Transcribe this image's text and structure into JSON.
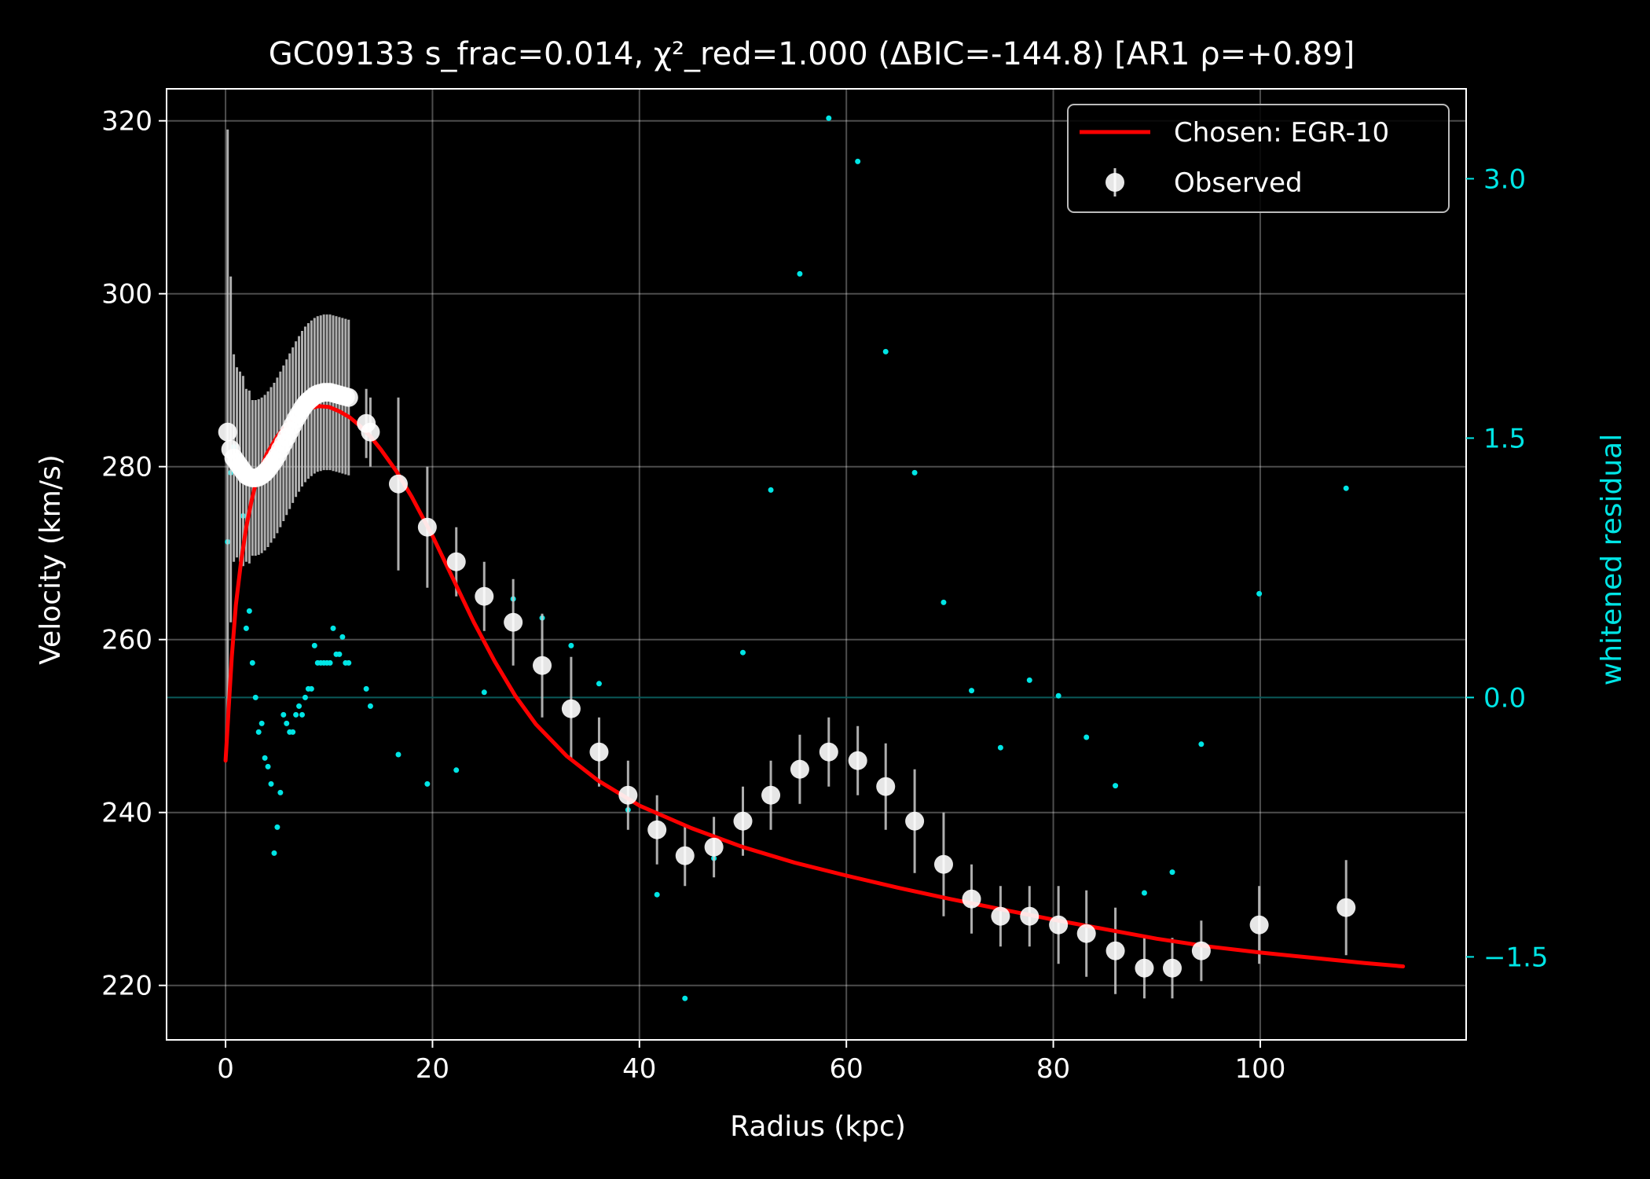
{
  "chart_data": {
    "type": "scatter",
    "title": "GC09133  s_frac=0.014, χ²_red=1.000  (ΔBIC=-144.8) [AR1 ρ=+0.89]",
    "xlabel": "Radius (kpc)",
    "ylabel": "Velocity (km/s)",
    "y2label": "whitened residual",
    "xlim": [
      -5.7,
      119.9
    ],
    "ylim": [
      213.7,
      323.7
    ],
    "y2lim": [
      -1.98,
      3.52
    ],
    "xticks": [
      0,
      20,
      40,
      60,
      80,
      100
    ],
    "yticks": [
      220,
      240,
      260,
      280,
      300,
      320
    ],
    "y2ticks": [
      -1.5,
      0.0,
      1.5,
      3.0
    ],
    "y2ticklabels": [
      "−1.5",
      "0.0",
      "1.5",
      "3.0"
    ],
    "grid": true,
    "legend_position": "top-right",
    "colors": {
      "background": "#000000",
      "axes": "#ffffff",
      "fit": "#ff0000",
      "observed": "#ffffff",
      "errorbar": "#cccccc",
      "residual": "#00e5e5",
      "zero_line": "#0a5a5a"
    },
    "legend": [
      "Chosen: EGR-10",
      "Observed"
    ],
    "series": [
      {
        "name": "Observed",
        "kind": "errorbar",
        "x": [
          0.2,
          0.5,
          0.8,
          1.1,
          1.4,
          1.7,
          2.0,
          2.3,
          2.6,
          2.9,
          3.2,
          3.5,
          3.8,
          4.1,
          4.4,
          4.7,
          5.0,
          5.3,
          5.6,
          5.9,
          6.2,
          6.5,
          6.8,
          7.1,
          7.4,
          7.7,
          8.0,
          8.3,
          8.6,
          8.9,
          9.2,
          9.5,
          9.8,
          10.1,
          10.4,
          10.7,
          11.0,
          11.3,
          11.6,
          11.9,
          13.6,
          14.0,
          16.7,
          19.5,
          22.3,
          25.0,
          27.8,
          30.6,
          33.4,
          36.1,
          38.9,
          41.7,
          44.4,
          47.2,
          50.0,
          52.7,
          55.5,
          58.3,
          61.1,
          63.8,
          66.6,
          69.4,
          72.1,
          74.9,
          77.7,
          80.5,
          83.2,
          86.0,
          88.8,
          91.5,
          94.3,
          99.9,
          108.3
        ],
        "y": [
          284.0,
          282.0,
          281.0,
          280.5,
          280.0,
          279.5,
          279.0,
          278.8,
          278.7,
          278.7,
          278.8,
          279.0,
          279.3,
          279.7,
          280.2,
          280.7,
          281.3,
          282.0,
          282.7,
          283.4,
          284.1,
          284.8,
          285.5,
          286.1,
          286.7,
          287.2,
          287.6,
          287.9,
          288.2,
          288.4,
          288.5,
          288.6,
          288.6,
          288.6,
          288.5,
          288.4,
          288.3,
          288.2,
          288.1,
          288.0,
          285.0,
          284.0,
          278.0,
          273.0,
          269.0,
          265.0,
          262.0,
          257.0,
          252.0,
          247.0,
          242.0,
          238.0,
          235.0,
          236.0,
          239.0,
          242.0,
          245.0,
          247.0,
          246.0,
          243.0,
          239.0,
          234.0,
          230.0,
          228.0,
          228.0,
          227.0,
          226.0,
          224.0,
          222.0,
          222.0,
          224.0,
          227.0,
          229.0
        ],
        "yerr": [
          35.0,
          20.0,
          12.0,
          11.0,
          11.0,
          11.0,
          10.0,
          10.0,
          9.0,
          9.0,
          9.0,
          9.0,
          9.0,
          9.0,
          9.0,
          9.0,
          9.0,
          9.0,
          9.0,
          9.0,
          9.0,
          9.0,
          9.0,
          9.0,
          9.0,
          9.0,
          9.0,
          9.0,
          9.0,
          9.0,
          9.0,
          9.0,
          9.0,
          9.0,
          9.0,
          9.0,
          9.0,
          9.0,
          9.0,
          9.0,
          4.0,
          4.0,
          10.0,
          7.0,
          4.0,
          4.0,
          5.0,
          6.0,
          6.0,
          4.0,
          4.0,
          4.0,
          3.5,
          3.5,
          4.0,
          4.0,
          4.0,
          4.0,
          4.0,
          5.0,
          6.0,
          6.0,
          4.0,
          3.5,
          3.5,
          4.5,
          5.0,
          5.0,
          3.5,
          3.5,
          3.5,
          4.5,
          5.5
        ]
      },
      {
        "name": "Chosen: EGR-10",
        "kind": "line",
        "x": [
          0.0,
          0.3,
          0.6,
          1.0,
          1.5,
          2.0,
          2.5,
          3.0,
          4.0,
          5.0,
          6.0,
          7.0,
          8.0,
          9.0,
          10.0,
          11.0,
          12.0,
          13.0,
          14.0,
          15.0,
          16.5,
          18.0,
          20.0,
          22.0,
          24.0,
          26.0,
          28.0,
          30.0,
          33.0,
          36.0,
          40.0,
          45.0,
          50.0,
          55.0,
          60.0,
          65.0,
          70.0,
          75.0,
          80.0,
          85.0,
          90.0,
          95.0,
          100.0,
          105.0,
          110.0,
          113.8
        ],
        "y": [
          246.0,
          252.0,
          258.0,
          264.0,
          269.0,
          273.0,
          276.0,
          278.5,
          281.5,
          283.5,
          285.0,
          286.0,
          286.7,
          287.0,
          286.9,
          286.4,
          285.7,
          284.7,
          283.5,
          282.0,
          279.5,
          276.5,
          272.0,
          267.0,
          262.0,
          257.5,
          253.5,
          250.2,
          246.5,
          243.7,
          240.8,
          238.2,
          236.0,
          234.2,
          232.7,
          231.3,
          230.0,
          228.8,
          227.6,
          226.5,
          225.4,
          224.5,
          223.8,
          223.2,
          222.6,
          222.2
        ]
      },
      {
        "name": "whitened residual",
        "kind": "scatter",
        "axis": "right",
        "x": [
          0.2,
          0.5,
          0.8,
          1.1,
          1.4,
          1.7,
          2.0,
          2.3,
          2.6,
          2.9,
          3.2,
          3.5,
          3.8,
          4.1,
          4.4,
          4.7,
          5.0,
          5.3,
          5.6,
          5.9,
          6.2,
          6.5,
          6.8,
          7.1,
          7.4,
          7.7,
          8.0,
          8.3,
          8.6,
          8.9,
          9.2,
          9.5,
          9.8,
          10.1,
          10.4,
          10.7,
          11.0,
          11.3,
          11.6,
          11.9,
          13.6,
          14.0,
          16.7,
          19.5,
          22.3,
          25.0,
          27.8,
          30.6,
          33.4,
          36.1,
          38.9,
          41.7,
          44.4,
          47.2,
          50.0,
          52.7,
          55.5,
          58.3,
          61.1,
          63.8,
          66.6,
          69.4,
          72.1,
          74.9,
          77.7,
          80.5,
          83.2,
          86.0,
          88.8,
          91.5,
          94.3,
          99.9,
          108.3
        ],
        "y": [
          0.9,
          1.3,
          1.45,
          1.4,
          1.3,
          1.05,
          0.4,
          0.5,
          0.2,
          0.0,
          -0.2,
          -0.15,
          -0.35,
          -0.4,
          -0.5,
          -0.9,
          -0.75,
          -0.55,
          -0.1,
          -0.15,
          -0.2,
          -0.2,
          -0.1,
          -0.05,
          -0.1,
          0.0,
          0.05,
          0.05,
          0.3,
          0.2,
          0.2,
          0.2,
          0.2,
          0.2,
          0.4,
          0.25,
          0.25,
          0.35,
          0.2,
          0.2,
          0.05,
          -0.05,
          -0.33,
          -0.5,
          -0.42,
          0.03,
          0.57,
          0.46,
          0.3,
          0.08,
          -0.65,
          -1.14,
          -1.74,
          -0.93,
          0.26,
          1.2,
          2.45,
          3.35,
          3.1,
          2.0,
          1.3,
          0.55,
          0.04,
          -0.29,
          0.1,
          0.01,
          -0.23,
          -0.51,
          -1.13,
          -1.01,
          -0.27,
          0.6,
          1.21
        ]
      }
    ]
  }
}
